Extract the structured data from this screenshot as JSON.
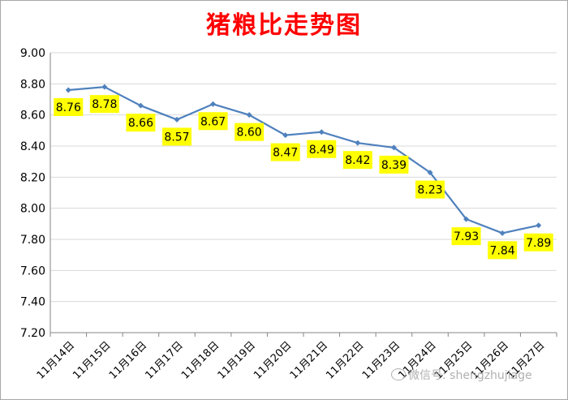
{
  "chart_data": {
    "type": "line",
    "title": "猪粮比走势图",
    "categories": [
      "11月14日",
      "11月15日",
      "11月16日",
      "11月17日",
      "11月18日",
      "11月19日",
      "11月20日",
      "11月21日",
      "11月22日",
      "11月23日",
      "11月24日",
      "11月25日",
      "11月26日",
      "11月27日"
    ],
    "series": [
      {
        "values": [
          8.76,
          8.78,
          8.66,
          8.57,
          8.67,
          8.6,
          8.47,
          8.49,
          8.42,
          8.39,
          8.23,
          7.93,
          7.84,
          7.89
        ]
      }
    ],
    "data_labels": [
      "8.76",
      "8.78",
      "8.66",
      "8.57",
      "8.67",
      "8.60",
      "8.47",
      "8.49",
      "8.42",
      "8.39",
      "8.23",
      "7.93",
      "7.84",
      "7.89"
    ],
    "y_ticks": [
      "9.00",
      "8.80",
      "8.60",
      "8.40",
      "8.20",
      "8.00",
      "7.80",
      "7.60",
      "7.40",
      "7.20"
    ],
    "ylim": [
      7.2,
      9.0
    ],
    "grid": true,
    "line_color": "#4f81bd",
    "label_bg_color": "#ffff00",
    "title_color": "#ff0000"
  },
  "watermark": {
    "icon": "wechat-icon",
    "text": "微信号: shengzhujiage"
  }
}
